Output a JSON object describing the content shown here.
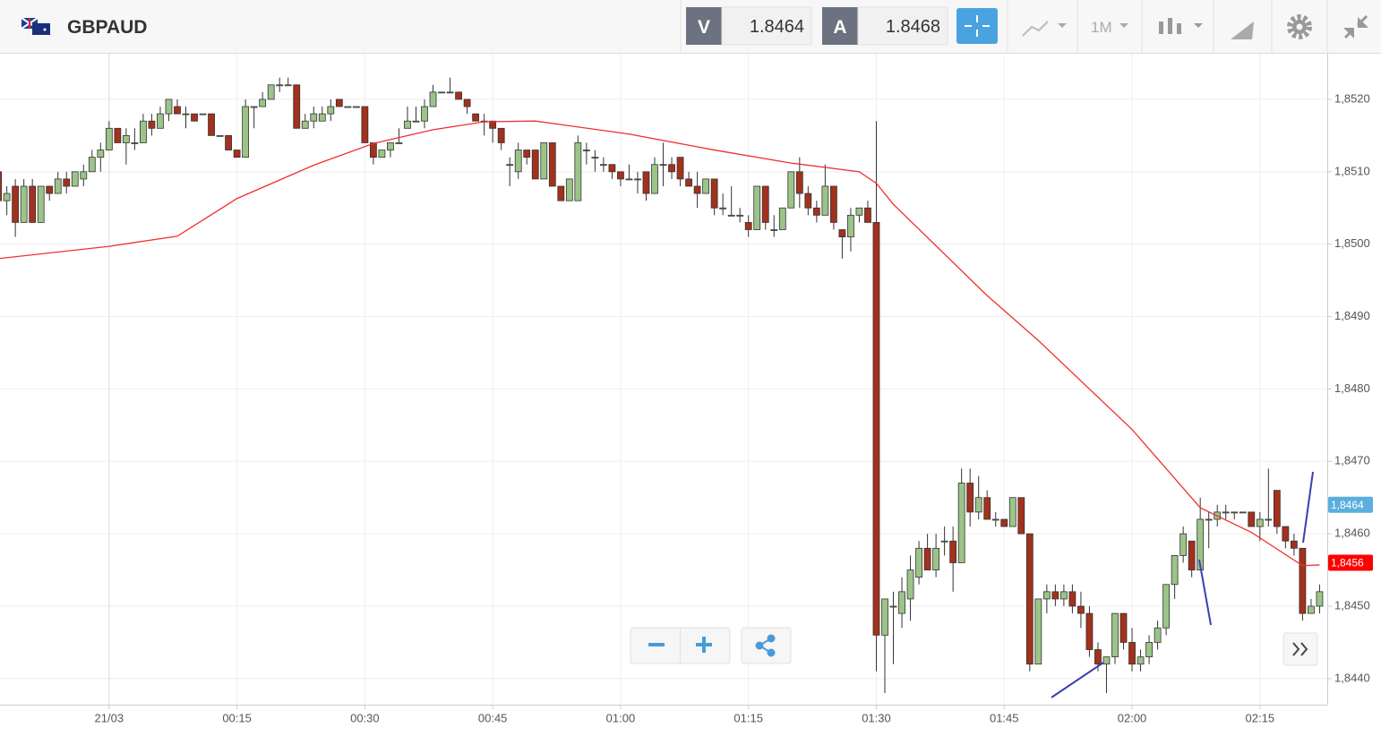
{
  "header": {
    "symbol": "GBPAUD",
    "sell_label": "V",
    "sell_price": "1.8464",
    "buy_label": "A",
    "buy_price": "1.8468",
    "timeframe": "1M"
  },
  "chart_data": {
    "type": "candlestick",
    "up_color": "#9cc488",
    "down_color": "#a2311d",
    "xlim": [
      -12.8,
      142.9
    ],
    "ylim": [
      1.84364,
      1.85263
    ],
    "xticks": [
      {
        "value": 0,
        "label": "21/03"
      },
      {
        "value": 15,
        "label": "00:15"
      },
      {
        "value": 30,
        "label": "00:30"
      },
      {
        "value": 45,
        "label": "00:45"
      },
      {
        "value": 60,
        "label": "01:00"
      },
      {
        "value": 75,
        "label": "01:15"
      },
      {
        "value": 90,
        "label": "01:30"
      },
      {
        "value": 105,
        "label": "01:45"
      },
      {
        "value": 120,
        "label": "02:00"
      },
      {
        "value": 135,
        "label": "02:15"
      }
    ],
    "yticks": [
      {
        "value": 1.844,
        "label": "1,8440"
      },
      {
        "value": 1.845,
        "label": "1,8450"
      },
      {
        "value": 1.846,
        "label": "1,8460"
      },
      {
        "value": 1.847,
        "label": "1,8470"
      },
      {
        "value": 1.848,
        "label": "1,8480"
      },
      {
        "value": 1.849,
        "label": "1,8490"
      },
      {
        "value": 1.85,
        "label": "1,8500"
      },
      {
        "value": 1.851,
        "label": "1,8510"
      },
      {
        "value": 1.852,
        "label": "1,8520"
      }
    ],
    "grid": true,
    "price_tags": [
      {
        "value": 1.8464,
        "label": "1,8464",
        "color": "#5aafde"
      },
      {
        "value": 1.8456,
        "label": "1,8456",
        "color": "#ff0000"
      }
    ],
    "ma": {
      "color": "#f03030",
      "x": [
        -13,
        0,
        8,
        15,
        24,
        31,
        38,
        44,
        50,
        61,
        71,
        80,
        88,
        90,
        92,
        103,
        109,
        120,
        128,
        134,
        140,
        142
      ],
      "values": [
        1.8498,
        1.84997,
        1.85011,
        1.85063,
        1.85109,
        1.85139,
        1.85158,
        1.85169,
        1.8517,
        1.85152,
        1.8513,
        1.85112,
        1.851,
        1.85084,
        1.85055,
        1.84929,
        1.84867,
        1.84744,
        1.84636,
        1.84602,
        1.84556,
        1.84557
      ]
    },
    "x": [
      -13,
      -12,
      -11,
      -10,
      -9,
      -8,
      -7,
      -6,
      -5,
      -4,
      -3,
      -2,
      -1,
      0,
      1,
      2,
      3,
      4,
      5,
      6,
      7,
      8,
      9,
      10,
      11,
      12,
      13,
      14,
      15,
      16,
      17,
      18,
      19,
      20,
      21,
      22,
      23,
      24,
      25,
      26,
      27,
      28,
      29,
      30,
      31,
      32,
      33,
      34,
      35,
      36,
      37,
      38,
      39,
      40,
      41,
      42,
      43,
      44,
      45,
      46,
      47,
      48,
      49,
      50,
      51,
      52,
      53,
      54,
      55,
      56,
      57,
      58,
      59,
      60,
      61,
      62,
      63,
      64,
      65,
      66,
      67,
      68,
      69,
      70,
      71,
      72,
      73,
      74,
      75,
      76,
      77,
      78,
      79,
      80,
      81,
      82,
      83,
      84,
      85,
      86,
      87,
      88,
      89,
      90,
      91,
      92,
      93,
      94,
      95,
      96,
      97,
      98,
      99,
      100,
      101,
      102,
      103,
      104,
      105,
      106,
      107,
      108,
      109,
      110,
      111,
      112,
      113,
      114,
      115,
      116,
      117,
      118,
      119,
      120,
      121,
      122,
      123,
      124,
      125,
      126,
      127,
      128,
      129,
      130,
      131,
      132,
      133,
      134,
      135,
      136,
      137,
      138,
      139,
      140,
      141,
      142
    ],
    "ohlc": [
      [
        1.851,
        1.8511,
        1.8505,
        1.8506
      ],
      [
        1.8506,
        1.8508,
        1.8504,
        1.8507
      ],
      [
        1.8508,
        1.8509,
        1.8501,
        1.8503
      ],
      [
        1.8503,
        1.8509,
        1.8503,
        1.8508
      ],
      [
        1.8508,
        1.8509,
        1.8503,
        1.8503
      ],
      [
        1.8503,
        1.8508,
        1.8503,
        1.8508
      ],
      [
        1.8508,
        1.8508,
        1.8506,
        1.8507
      ],
      [
        1.8507,
        1.851,
        1.8507,
        1.8509
      ],
      [
        1.8509,
        1.851,
        1.8507,
        1.8508
      ],
      [
        1.8508,
        1.851,
        1.8508,
        1.851
      ],
      [
        1.8509,
        1.8511,
        1.8508,
        1.851
      ],
      [
        1.851,
        1.8513,
        1.851,
        1.8512
      ],
      [
        1.8512,
        1.8514,
        1.851,
        1.8513
      ],
      [
        1.8513,
        1.8517,
        1.8513,
        1.8516
      ],
      [
        1.8516,
        1.8516,
        1.8514,
        1.8514
      ],
      [
        1.8514,
        1.8516,
        1.8511,
        1.8515
      ],
      [
        1.8514,
        1.8516,
        1.8513,
        1.8514
      ],
      [
        1.8514,
        1.8518,
        1.8514,
        1.8517
      ],
      [
        1.8517,
        1.8518,
        1.8515,
        1.8516
      ],
      [
        1.8516,
        1.8519,
        1.8516,
        1.8518
      ],
      [
        1.8518,
        1.852,
        1.8517,
        1.852
      ],
      [
        1.8519,
        1.852,
        1.8518,
        1.8518
      ],
      [
        1.8518,
        1.8519,
        1.8516,
        1.8518
      ],
      [
        1.8518,
        1.8518,
        1.8517,
        1.8517
      ],
      [
        1.8518,
        1.8518,
        1.8518,
        1.8518
      ],
      [
        1.8518,
        1.8518,
        1.8515,
        1.8515
      ],
      [
        1.8515,
        1.8515,
        1.8515,
        1.8515
      ],
      [
        1.8515,
        1.8515,
        1.8513,
        1.8513
      ],
      [
        1.8513,
        1.8513,
        1.8512,
        1.8512
      ],
      [
        1.8512,
        1.852,
        1.8512,
        1.8519
      ],
      [
        1.8519,
        1.8519,
        1.8516,
        1.8519
      ],
      [
        1.8519,
        1.8521,
        1.8519,
        1.852
      ],
      [
        1.852,
        1.8522,
        1.852,
        1.8522
      ],
      [
        1.8522,
        1.8523,
        1.8521,
        1.8522
      ],
      [
        1.8522,
        1.8523,
        1.8522,
        1.8522
      ],
      [
        1.8522,
        1.8522,
        1.8516,
        1.8516
      ],
      [
        1.8516,
        1.8518,
        1.8516,
        1.8517
      ],
      [
        1.8517,
        1.8519,
        1.8516,
        1.8518
      ],
      [
        1.8517,
        1.8519,
        1.8517,
        1.8518
      ],
      [
        1.8518,
        1.852,
        1.8517,
        1.8519
      ],
      [
        1.852,
        1.852,
        1.8519,
        1.8519
      ],
      [
        1.8519,
        1.8519,
        1.8519,
        1.8519
      ],
      [
        1.8519,
        1.8519,
        1.8519,
        1.8519
      ],
      [
        1.8519,
        1.8519,
        1.8514,
        1.8514
      ],
      [
        1.8514,
        1.8514,
        1.8511,
        1.8512
      ],
      [
        1.8512,
        1.8513,
        1.8512,
        1.8513
      ],
      [
        1.8513,
        1.8514,
        1.8512,
        1.8514
      ],
      [
        1.8514,
        1.8516,
        1.8514,
        1.8514
      ],
      [
        1.8516,
        1.8519,
        1.8516,
        1.8517
      ],
      [
        1.8517,
        1.8519,
        1.8517,
        1.8517
      ],
      [
        1.8517,
        1.852,
        1.8516,
        1.8519
      ],
      [
        1.8519,
        1.8522,
        1.8519,
        1.8521
      ],
      [
        1.8521,
        1.8521,
        1.8521,
        1.8521
      ],
      [
        1.8521,
        1.8523,
        1.8521,
        1.8521
      ],
      [
        1.8521,
        1.8521,
        1.852,
        1.852
      ],
      [
        1.852,
        1.852,
        1.8518,
        1.8519
      ],
      [
        1.8518,
        1.8518,
        1.8517,
        1.8517
      ],
      [
        1.8517,
        1.8518,
        1.8515,
        1.8517
      ],
      [
        1.8517,
        1.8517,
        1.8514,
        1.8516
      ],
      [
        1.8516,
        1.8516,
        1.8513,
        1.8514
      ],
      [
        1.8511,
        1.8512,
        1.8508,
        1.8511
      ],
      [
        1.851,
        1.8514,
        1.8509,
        1.8513
      ],
      [
        1.8513,
        1.8513,
        1.8511,
        1.8512
      ],
      [
        1.8513,
        1.8513,
        1.8509,
        1.8509
      ],
      [
        1.8509,
        1.8514,
        1.8509,
        1.8514
      ],
      [
        1.8514,
        1.8514,
        1.8508,
        1.8508
      ],
      [
        1.8508,
        1.8508,
        1.8506,
        1.8506
      ],
      [
        1.8506,
        1.8509,
        1.8506,
        1.8509
      ],
      [
        1.8506,
        1.8515,
        1.8506,
        1.8514
      ],
      [
        1.8513,
        1.8514,
        1.8511,
        1.8513
      ],
      [
        1.8512,
        1.8513,
        1.851,
        1.8512
      ],
      [
        1.8511,
        1.8512,
        1.851,
        1.8511
      ],
      [
        1.8511,
        1.8511,
        1.8509,
        1.851
      ],
      [
        1.851,
        1.851,
        1.8508,
        1.8509
      ],
      [
        1.8509,
        1.8511,
        1.8509,
        1.8509
      ],
      [
        1.8509,
        1.851,
        1.8507,
        1.8509
      ],
      [
        1.851,
        1.851,
        1.8506,
        1.8507
      ],
      [
        1.8507,
        1.8512,
        1.8507,
        1.8511
      ],
      [
        1.8511,
        1.8514,
        1.8508,
        1.8511
      ],
      [
        1.8511,
        1.8512,
        1.8509,
        1.851
      ],
      [
        1.8512,
        1.8512,
        1.8508,
        1.8509
      ],
      [
        1.8509,
        1.851,
        1.8508,
        1.8508
      ],
      [
        1.8508,
        1.851,
        1.8505,
        1.8507
      ],
      [
        1.8507,
        1.8509,
        1.8507,
        1.8509
      ],
      [
        1.8509,
        1.8509,
        1.8504,
        1.8505
      ],
      [
        1.8505,
        1.8507,
        1.8504,
        1.8505
      ],
      [
        1.8504,
        1.8508,
        1.8504,
        1.8504
      ],
      [
        1.8504,
        1.8505,
        1.8503,
        1.8504
      ],
      [
        1.8503,
        1.8504,
        1.8501,
        1.8502
      ],
      [
        1.8502,
        1.8508,
        1.8502,
        1.8508
      ],
      [
        1.8508,
        1.8508,
        1.8502,
        1.8503
      ],
      [
        1.8502,
        1.8504,
        1.8501,
        1.8502
      ],
      [
        1.8502,
        1.8505,
        1.8502,
        1.8505
      ],
      [
        1.8505,
        1.851,
        1.8505,
        1.851
      ],
      [
        1.851,
        1.8512,
        1.8505,
        1.8507
      ],
      [
        1.8507,
        1.8508,
        1.8504,
        1.8505
      ],
      [
        1.8505,
        1.8506,
        1.8503,
        1.8504
      ],
      [
        1.8504,
        1.8511,
        1.8504,
        1.8508
      ],
      [
        1.8508,
        1.8508,
        1.8502,
        1.8503
      ],
      [
        1.8502,
        1.8502,
        1.8498,
        1.8501
      ],
      [
        1.8501,
        1.8505,
        1.8499,
        1.8504
      ],
      [
        1.8504,
        1.8505,
        1.8503,
        1.8505
      ],
      [
        1.8505,
        1.8506,
        1.8503,
        1.8503
      ],
      [
        1.8503,
        1.8517,
        1.8441,
        1.8446
      ],
      [
        1.8446,
        1.8451,
        1.8438,
        1.8451
      ],
      [
        1.845,
        1.8452,
        1.8442,
        1.845
      ],
      [
        1.8449,
        1.8454,
        1.8447,
        1.8452
      ],
      [
        1.8451,
        1.8457,
        1.8448,
        1.8455
      ],
      [
        1.8454,
        1.8459,
        1.8453,
        1.8458
      ],
      [
        1.8458,
        1.846,
        1.8455,
        1.8455
      ],
      [
        1.8455,
        1.846,
        1.8454,
        1.8458
      ],
      [
        1.8459,
        1.8461,
        1.8457,
        1.8459
      ],
      [
        1.8459,
        1.8461,
        1.8452,
        1.8456
      ],
      [
        1.8456,
        1.8469,
        1.8456,
        1.8467
      ],
      [
        1.8467,
        1.8469,
        1.8461,
        1.8463
      ],
      [
        1.8463,
        1.8468,
        1.8462,
        1.8465
      ],
      [
        1.8465,
        1.8466,
        1.8462,
        1.8462
      ],
      [
        1.8462,
        1.8463,
        1.8461,
        1.8462
      ],
      [
        1.8462,
        1.8462,
        1.8461,
        1.8461
      ],
      [
        1.8461,
        1.8465,
        1.8461,
        1.8465
      ],
      [
        1.8465,
        1.8465,
        1.846,
        1.846
      ],
      [
        1.846,
        1.846,
        1.8441,
        1.8442
      ],
      [
        1.8442,
        1.8451,
        1.8442,
        1.8451
      ],
      [
        1.8451,
        1.8453,
        1.8449,
        1.8452
      ],
      [
        1.8452,
        1.8453,
        1.845,
        1.8451
      ],
      [
        1.8451,
        1.8453,
        1.845,
        1.8452
      ],
      [
        1.8452,
        1.8453,
        1.8449,
        1.845
      ],
      [
        1.845,
        1.8452,
        1.8447,
        1.8449
      ],
      [
        1.8449,
        1.845,
        1.8443,
        1.8444
      ],
      [
        1.8444,
        1.8445,
        1.8441,
        1.8442
      ],
      [
        1.8442,
        1.8443,
        1.8438,
        1.8443
      ],
      [
        1.8443,
        1.8449,
        1.8442,
        1.8449
      ],
      [
        1.8449,
        1.8449,
        1.8444,
        1.8445
      ],
      [
        1.8445,
        1.8447,
        1.8441,
        1.8442
      ],
      [
        1.8442,
        1.8444,
        1.8441,
        1.8443
      ],
      [
        1.8443,
        1.8446,
        1.8442,
        1.8445
      ],
      [
        1.8445,
        1.8448,
        1.8444,
        1.8447
      ],
      [
        1.8447,
        1.8453,
        1.8446,
        1.8453
      ],
      [
        1.8453,
        1.8457,
        1.8451,
        1.8457
      ],
      [
        1.8457,
        1.8461,
        1.8456,
        1.846
      ],
      [
        1.8459,
        1.8459,
        1.8454,
        1.8455
      ],
      [
        1.8455,
        1.8465,
        1.8455,
        1.8462
      ],
      [
        1.8462,
        1.8463,
        1.8458,
        1.8462
      ],
      [
        1.8462,
        1.8464,
        1.8461,
        1.8463
      ],
      [
        1.8463,
        1.8464,
        1.8462,
        1.8463
      ],
      [
        1.8463,
        1.8463,
        1.8462,
        1.8463
      ],
      [
        1.8463,
        1.8463,
        1.8463,
        1.8463
      ],
      [
        1.8463,
        1.8463,
        1.8461,
        1.8461
      ],
      [
        1.8461,
        1.8463,
        1.8459,
        1.8462
      ],
      [
        1.8462,
        1.8469,
        1.8461,
        1.8462
      ],
      [
        1.8466,
        1.8466,
        1.846,
        1.8461
      ],
      [
        1.8461,
        1.8461,
        1.8458,
        1.8459
      ],
      [
        1.8459,
        1.846,
        1.8457,
        1.8458
      ],
      [
        1.8458,
        1.8458,
        1.8448,
        1.8449
      ],
      [
        1.8449,
        1.8451,
        1.8449,
        1.845
      ],
      [
        1.845,
        1.8453,
        1.8449,
        1.8452
      ]
    ]
  }
}
